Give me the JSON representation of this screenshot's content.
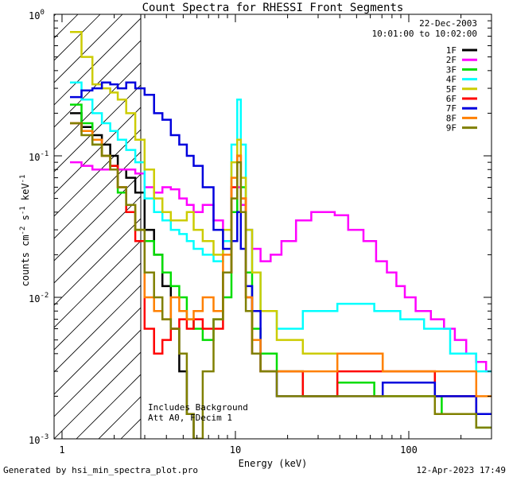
{
  "chart_data": {
    "type": "line",
    "title": "Count Spectra for RHESSI Front Segments",
    "xlabel": "Energy (keV)",
    "ylabel": "counts cm^-2 s^-1 keV^-1",
    "x_scale": "log",
    "y_scale": "log",
    "xlim": [
      0.9,
      300
    ],
    "ylim": [
      0.001,
      1.0
    ],
    "x_ticks": [
      {
        "value": 1,
        "label": "1"
      },
      {
        "value": 10,
        "label": "10"
      },
      {
        "value": 100,
        "label": "100"
      }
    ],
    "y_ticks": [
      {
        "value": 1,
        "label": "10",
        "exp": "0"
      },
      {
        "value": 0.1,
        "label": "10",
        "exp": "-1"
      },
      {
        "value": 0.01,
        "label": "10",
        "exp": "-2"
      },
      {
        "value": 0.001,
        "label": "10",
        "exp": "-3"
      }
    ],
    "date": "22-Dec-2003",
    "time_range": "10:01:00 to 10:02:00",
    "annotations": [
      "Includes Background",
      "Att A0, FDecim 1"
    ],
    "hatched_region_max_kev": 3,
    "series": [
      {
        "name": "1F",
        "color": "#000000",
        "points": [
          [
            1.2,
            0.2
          ],
          [
            1.4,
            0.16
          ],
          [
            1.6,
            0.14
          ],
          [
            1.8,
            0.12
          ],
          [
            2.0,
            0.1
          ],
          [
            2.2,
            0.08
          ],
          [
            2.5,
            0.07
          ],
          [
            2.8,
            0.055
          ],
          [
            3.2,
            0.03
          ],
          [
            3.6,
            0.02
          ],
          [
            4.0,
            0.012
          ],
          [
            4.5,
            0.006
          ],
          [
            5.0,
            0.003
          ],
          [
            5.5,
            0.0015
          ],
          [
            6,
            0.001
          ]
        ]
      },
      {
        "name": "2F",
        "color": "#ff00ff",
        "points": [
          [
            1.2,
            0.09
          ],
          [
            1.4,
            0.085
          ],
          [
            1.6,
            0.08
          ],
          [
            1.8,
            0.08
          ],
          [
            2.0,
            0.08
          ],
          [
            2.2,
            0.08
          ],
          [
            2.5,
            0.08
          ],
          [
            2.8,
            0.075
          ],
          [
            3.2,
            0.06
          ],
          [
            3.6,
            0.055
          ],
          [
            4.0,
            0.06
          ],
          [
            4.5,
            0.058
          ],
          [
            5.0,
            0.05
          ],
          [
            5.5,
            0.045
          ],
          [
            6,
            0.04
          ],
          [
            7,
            0.045
          ],
          [
            8,
            0.035
          ],
          [
            9,
            0.025
          ],
          [
            10,
            0.04
          ],
          [
            10.5,
            0.06
          ],
          [
            11,
            0.045
          ],
          [
            12,
            0.03
          ],
          [
            13,
            0.022
          ],
          [
            15,
            0.018
          ],
          [
            17,
            0.02
          ],
          [
            20,
            0.025
          ],
          [
            25,
            0.035
          ],
          [
            30,
            0.04
          ],
          [
            35,
            0.04
          ],
          [
            40,
            0.038
          ],
          [
            50,
            0.03
          ],
          [
            60,
            0.025
          ],
          [
            70,
            0.018
          ],
          [
            80,
            0.015
          ],
          [
            90,
            0.012
          ],
          [
            100,
            0.01
          ],
          [
            120,
            0.008
          ],
          [
            150,
            0.007
          ],
          [
            170,
            0.006
          ],
          [
            200,
            0.005
          ],
          [
            230,
            0.004
          ],
          [
            260,
            0.0035
          ],
          [
            300,
            0.003
          ]
        ]
      },
      {
        "name": "3F",
        "color": "#00dd00",
        "points": [
          [
            1.2,
            0.23
          ],
          [
            1.4,
            0.17
          ],
          [
            1.6,
            0.12
          ],
          [
            1.8,
            0.1
          ],
          [
            2.0,
            0.085
          ],
          [
            2.2,
            0.055
          ],
          [
            2.5,
            0.04
          ],
          [
            2.8,
            0.03
          ],
          [
            3.2,
            0.025
          ],
          [
            3.6,
            0.02
          ],
          [
            4.0,
            0.015
          ],
          [
            4.5,
            0.012
          ],
          [
            5.0,
            0.01
          ],
          [
            5.5,
            0.007
          ],
          [
            6,
            0.006
          ],
          [
            7,
            0.005
          ],
          [
            8,
            0.007
          ],
          [
            9,
            0.01
          ],
          [
            10,
            0.04
          ],
          [
            10.5,
            0.1
          ],
          [
            11,
            0.06
          ],
          [
            12,
            0.015
          ],
          [
            13,
            0.006
          ],
          [
            15,
            0.004
          ],
          [
            20,
            0.003
          ],
          [
            30,
            0.002
          ],
          [
            50,
            0.0025
          ],
          [
            80,
            0.002
          ],
          [
            120,
            0.002
          ],
          [
            200,
            0.0015
          ],
          [
            300,
            0.0012
          ]
        ]
      },
      {
        "name": "4F",
        "color": "#00ffff",
        "points": [
          [
            1.2,
            0.33
          ],
          [
            1.4,
            0.25
          ],
          [
            1.6,
            0.2
          ],
          [
            1.8,
            0.17
          ],
          [
            2.0,
            0.15
          ],
          [
            2.2,
            0.13
          ],
          [
            2.5,
            0.11
          ],
          [
            2.8,
            0.09
          ],
          [
            3.2,
            0.05
          ],
          [
            3.6,
            0.04
          ],
          [
            4.0,
            0.035
          ],
          [
            4.5,
            0.03
          ],
          [
            5.0,
            0.028
          ],
          [
            5.5,
            0.025
          ],
          [
            6,
            0.022
          ],
          [
            7,
            0.02
          ],
          [
            8,
            0.018
          ],
          [
            9,
            0.025
          ],
          [
            10,
            0.12
          ],
          [
            10.5,
            0.25
          ],
          [
            11,
            0.12
          ],
          [
            12,
            0.03
          ],
          [
            13,
            0.015
          ],
          [
            15,
            0.008
          ],
          [
            20,
            0.006
          ],
          [
            30,
            0.008
          ],
          [
            50,
            0.009
          ],
          [
            80,
            0.008
          ],
          [
            100,
            0.007
          ],
          [
            150,
            0.006
          ],
          [
            200,
            0.004
          ],
          [
            300,
            0.003
          ]
        ]
      },
      {
        "name": "5F",
        "color": "#cccc00",
        "points": [
          [
            1.2,
            0.75
          ],
          [
            1.4,
            0.5
          ],
          [
            1.6,
            0.32
          ],
          [
            1.8,
            0.3
          ],
          [
            2.0,
            0.28
          ],
          [
            2.2,
            0.25
          ],
          [
            2.5,
            0.2
          ],
          [
            2.8,
            0.13
          ],
          [
            3.2,
            0.08
          ],
          [
            3.6,
            0.05
          ],
          [
            4.0,
            0.04
          ],
          [
            4.5,
            0.035
          ],
          [
            5.0,
            0.035
          ],
          [
            5.5,
            0.04
          ],
          [
            6,
            0.03
          ],
          [
            7,
            0.025
          ],
          [
            8,
            0.02
          ],
          [
            9,
            0.03
          ],
          [
            10,
            0.09
          ],
          [
            10.5,
            0.13
          ],
          [
            11,
            0.07
          ],
          [
            12,
            0.03
          ],
          [
            13,
            0.015
          ],
          [
            15,
            0.008
          ],
          [
            20,
            0.005
          ],
          [
            30,
            0.004
          ],
          [
            50,
            0.004
          ],
          [
            100,
            0.003
          ],
          [
            200,
            0.002
          ],
          [
            300,
            0.0015
          ]
        ]
      },
      {
        "name": "6F",
        "color": "#ff0000",
        "points": [
          [
            1.2,
            0.17
          ],
          [
            1.4,
            0.15
          ],
          [
            1.6,
            0.13
          ],
          [
            1.8,
            0.1
          ],
          [
            2.0,
            0.085
          ],
          [
            2.2,
            0.06
          ],
          [
            2.5,
            0.04
          ],
          [
            2.8,
            0.025
          ],
          [
            3.2,
            0.006
          ],
          [
            3.6,
            0.004
          ],
          [
            4.0,
            0.005
          ],
          [
            4.5,
            0.006
          ],
          [
            5.0,
            0.007
          ],
          [
            5.5,
            0.006
          ],
          [
            6,
            0.007
          ],
          [
            7,
            0.006
          ],
          [
            8,
            0.006
          ],
          [
            9,
            0.015
          ],
          [
            10,
            0.06
          ],
          [
            10.5,
            0.1
          ],
          [
            11,
            0.05
          ],
          [
            12,
            0.01
          ],
          [
            13,
            0.004
          ],
          [
            15,
            0.003
          ],
          [
            20,
            0.003
          ],
          [
            30,
            0.002
          ],
          [
            50,
            0.003
          ],
          [
            100,
            0.003
          ],
          [
            200,
            0.002
          ],
          [
            300,
            0.0015
          ]
        ]
      },
      {
        "name": "7F",
        "color": "#0000dd",
        "points": [
          [
            1.2,
            0.26
          ],
          [
            1.4,
            0.29
          ],
          [
            1.6,
            0.3
          ],
          [
            1.8,
            0.33
          ],
          [
            2.0,
            0.32
          ],
          [
            2.2,
            0.3
          ],
          [
            2.5,
            0.33
          ],
          [
            2.8,
            0.3
          ],
          [
            3.2,
            0.27
          ],
          [
            3.6,
            0.2
          ],
          [
            4.0,
            0.18
          ],
          [
            4.5,
            0.14
          ],
          [
            5.0,
            0.12
          ],
          [
            5.5,
            0.1
          ],
          [
            6,
            0.085
          ],
          [
            7,
            0.06
          ],
          [
            8,
            0.03
          ],
          [
            9,
            0.022
          ],
          [
            10,
            0.025
          ],
          [
            10.5,
            0.04
          ],
          [
            11,
            0.022
          ],
          [
            12,
            0.012
          ],
          [
            13,
            0.008
          ],
          [
            15,
            0.003
          ],
          [
            20,
            0.002
          ],
          [
            30,
            0.002
          ],
          [
            50,
            0.002
          ],
          [
            100,
            0.0025
          ],
          [
            200,
            0.002
          ],
          [
            300,
            0.0015
          ]
        ]
      },
      {
        "name": "8F",
        "color": "#ff8000",
        "points": [
          [
            1.2,
            0.17
          ],
          [
            1.4,
            0.15
          ],
          [
            1.6,
            0.13
          ],
          [
            1.8,
            0.1
          ],
          [
            2.0,
            0.08
          ],
          [
            2.2,
            0.06
          ],
          [
            2.5,
            0.045
          ],
          [
            2.8,
            0.03
          ],
          [
            3.2,
            0.01
          ],
          [
            3.6,
            0.008
          ],
          [
            4.0,
            0.007
          ],
          [
            4.5,
            0.01
          ],
          [
            5.0,
            0.008
          ],
          [
            5.5,
            0.007
          ],
          [
            6,
            0.008
          ],
          [
            7,
            0.01
          ],
          [
            8,
            0.008
          ],
          [
            9,
            0.02
          ],
          [
            10,
            0.07
          ],
          [
            10.5,
            0.1
          ],
          [
            11,
            0.05
          ],
          [
            12,
            0.01
          ],
          [
            13,
            0.005
          ],
          [
            15,
            0.003
          ],
          [
            20,
            0.003
          ],
          [
            30,
            0.003
          ],
          [
            50,
            0.004
          ],
          [
            100,
            0.003
          ],
          [
            200,
            0.003
          ],
          [
            300,
            0.002
          ]
        ]
      },
      {
        "name": "9F",
        "color": "#808000",
        "points": [
          [
            1.2,
            0.17
          ],
          [
            1.4,
            0.14
          ],
          [
            1.6,
            0.12
          ],
          [
            1.8,
            0.1
          ],
          [
            2.0,
            0.08
          ],
          [
            2.2,
            0.06
          ],
          [
            2.5,
            0.045
          ],
          [
            2.8,
            0.03
          ],
          [
            3.2,
            0.015
          ],
          [
            3.6,
            0.01
          ],
          [
            4.0,
            0.007
          ],
          [
            4.5,
            0.006
          ],
          [
            5.0,
            0.004
          ],
          [
            5.5,
            0.0015
          ],
          [
            6,
            0.001
          ],
          [
            7,
            0.003
          ],
          [
            8,
            0.007
          ],
          [
            9,
            0.015
          ],
          [
            10,
            0.05
          ],
          [
            10.5,
            0.09
          ],
          [
            11,
            0.04
          ],
          [
            12,
            0.008
          ],
          [
            13,
            0.004
          ],
          [
            15,
            0.003
          ],
          [
            20,
            0.002
          ],
          [
            30,
            0.002
          ],
          [
            50,
            0.002
          ],
          [
            100,
            0.002
          ],
          [
            200,
            0.0015
          ],
          [
            300,
            0.0012
          ]
        ]
      }
    ]
  },
  "footer": {
    "left": "Generated by hsi_min_spectra_plot.pro",
    "right": "12-Apr-2023 17:49"
  }
}
